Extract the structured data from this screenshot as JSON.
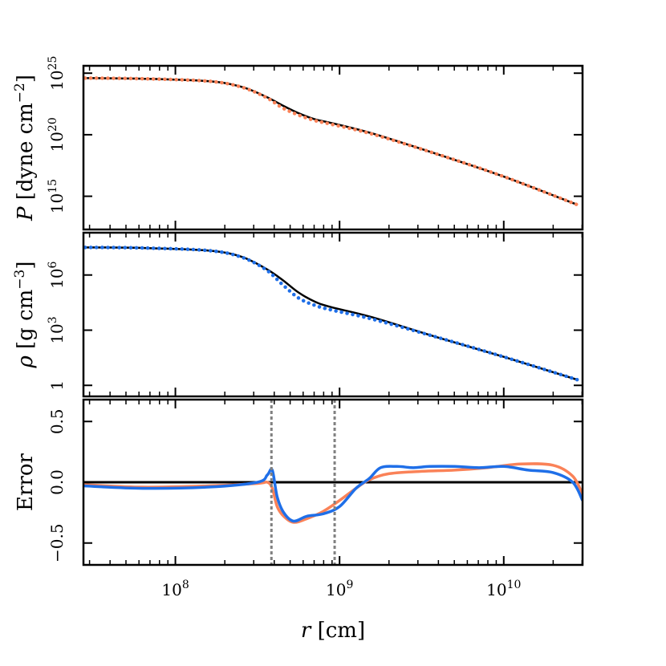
{
  "chart_data": [
    {
      "type": "line",
      "panel": "pressure",
      "ylabel": "P [dyne cm⁻²]",
      "ylabel_parts": {
        "var": "P",
        "open": "[dyne cm",
        "exp": "−2",
        "close": "]"
      },
      "yscale": "log",
      "ylim_log10": [
        12.3,
        25.6
      ],
      "yticks": [
        {
          "label_base": "10",
          "label_exp": "25",
          "value_log10": 25
        },
        {
          "label_base": "10",
          "label_exp": "20",
          "value_log10": 20
        },
        {
          "label_base": "10",
          "label_exp": "15",
          "value_log10": 15
        }
      ],
      "series": [
        {
          "style": "solid",
          "color": "#000000",
          "x_log10": [
            7.45,
            7.8,
            8.2,
            8.4,
            8.55,
            8.65,
            8.75,
            8.85,
            8.95,
            9.2,
            9.6,
            10.0,
            10.45
          ],
          "y_log10": [
            24.6,
            24.55,
            24.35,
            23.9,
            23.1,
            22.4,
            21.75,
            21.25,
            20.95,
            20.1,
            18.4,
            16.6,
            14.3
          ]
        },
        {
          "style": "dotted",
          "color": "#fa8258",
          "x_log10": [
            7.45,
            7.8,
            8.2,
            8.4,
            8.55,
            8.65,
            8.75,
            8.85,
            8.95,
            9.2,
            9.6,
            10.0,
            10.45
          ],
          "y_log10": [
            24.6,
            24.55,
            24.35,
            23.88,
            23.05,
            22.2,
            21.6,
            21.15,
            20.85,
            20.05,
            18.4,
            16.6,
            14.3
          ]
        }
      ]
    },
    {
      "type": "line",
      "panel": "density",
      "ylabel": "ρ [g cm⁻³]",
      "ylabel_parts": {
        "var": "ρ",
        "open": "[g cm",
        "exp": "−3",
        "close": "]"
      },
      "yscale": "log",
      "ylim_log10": [
        -0.6,
        8.3
      ],
      "yticks": [
        {
          "label_base": "10",
          "label_exp": "6",
          "value_log10": 6
        },
        {
          "label_base": "10",
          "label_exp": "3",
          "value_log10": 3
        },
        {
          "label_base": "1",
          "label_exp": "",
          "value_log10": 0
        }
      ],
      "series": [
        {
          "style": "solid",
          "color": "#000000",
          "x_log10": [
            7.45,
            7.8,
            8.2,
            8.4,
            8.55,
            8.65,
            8.75,
            8.85,
            8.95,
            9.2,
            9.6,
            10.0,
            10.45
          ],
          "y_log10": [
            7.5,
            7.47,
            7.33,
            7.0,
            6.35,
            5.75,
            5.05,
            4.55,
            4.25,
            3.7,
            2.6,
            1.55,
            0.3
          ]
        },
        {
          "style": "dotted",
          "color": "#1f6fe8",
          "x_log10": [
            7.45,
            7.8,
            8.2,
            8.4,
            8.55,
            8.65,
            8.75,
            8.85,
            8.95,
            9.2,
            9.6,
            10.0,
            10.45
          ],
          "y_log10": [
            7.5,
            7.47,
            7.33,
            6.98,
            6.3,
            5.5,
            4.75,
            4.35,
            4.1,
            3.6,
            2.6,
            1.55,
            0.3
          ]
        }
      ]
    },
    {
      "type": "line",
      "panel": "error",
      "ylabel": "Error",
      "xlabel": "r [cm]",
      "xlabel_parts": {
        "var": "r",
        "unit": "[cm]"
      },
      "xscale": "log",
      "xlim_log10": [
        7.44,
        10.48
      ],
      "xticks": [
        {
          "label_base": "10",
          "label_exp": "8",
          "value_log10": 8
        },
        {
          "label_base": "10",
          "label_exp": "9",
          "value_log10": 9
        },
        {
          "label_base": "10",
          "label_exp": "10",
          "value_log10": 10
        }
      ],
      "ylim": [
        -0.68,
        0.68
      ],
      "yticks": [
        {
          "label": "0.5",
          "value": 0.5
        },
        {
          "label": "0.0",
          "value": 0.0
        },
        {
          "label": "−0.5",
          "value": -0.5
        }
      ],
      "vlines_log10": [
        8.585,
        8.97
      ],
      "hline": 0.0,
      "series": [
        {
          "color": "#fa8258",
          "x_log10": [
            7.44,
            7.8,
            8.2,
            8.5,
            8.56,
            8.59,
            8.62,
            8.66,
            8.72,
            8.8,
            8.9,
            9.0,
            9.1,
            9.18,
            9.3,
            9.5,
            9.7,
            9.9,
            10.1,
            10.3,
            10.42,
            10.48
          ],
          "y": [
            -0.02,
            -0.04,
            -0.03,
            -0.01,
            0.0,
            -0.05,
            -0.2,
            -0.28,
            -0.33,
            -0.3,
            -0.24,
            -0.15,
            -0.05,
            0.02,
            0.07,
            0.09,
            0.1,
            0.12,
            0.15,
            0.14,
            0.05,
            -0.1
          ]
        },
        {
          "color": "#1f6fe8",
          "x_log10": [
            7.44,
            7.8,
            8.2,
            8.5,
            8.56,
            8.59,
            8.62,
            8.66,
            8.72,
            8.8,
            8.9,
            9.0,
            9.1,
            9.18,
            9.25,
            9.35,
            9.45,
            9.55,
            9.7,
            9.85,
            10.0,
            10.15,
            10.3,
            10.42,
            10.48
          ],
          "y": [
            -0.03,
            -0.05,
            -0.04,
            0.0,
            0.06,
            0.1,
            -0.12,
            -0.25,
            -0.32,
            -0.28,
            -0.26,
            -0.2,
            -0.05,
            0.03,
            0.12,
            0.13,
            0.12,
            0.13,
            0.13,
            0.12,
            0.13,
            0.1,
            0.08,
            0.0,
            -0.15
          ]
        }
      ]
    }
  ]
}
